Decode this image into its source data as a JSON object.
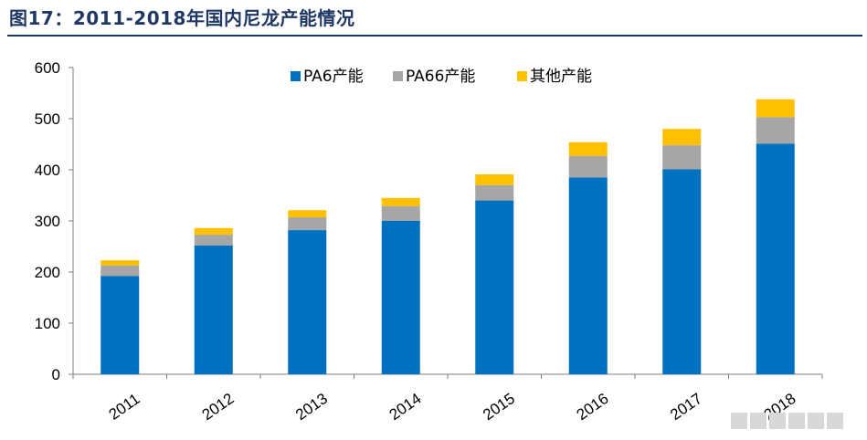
{
  "page": {
    "title": "图17：2011-2018年国内尼龙产能情况"
  },
  "chart_data": {
    "type": "bar",
    "stacked": true,
    "categories": [
      "2011",
      "2012",
      "2013",
      "2014",
      "2015",
      "2016",
      "2017",
      "2018"
    ],
    "series": [
      {
        "name": "PA6产能",
        "color": "#0070c0",
        "values": [
          192,
          252,
          282,
          300,
          340,
          385,
          401,
          451
        ]
      },
      {
        "name": "PA66产能",
        "color": "#a6a6a6",
        "values": [
          21,
          21,
          25,
          29,
          30,
          42,
          47,
          52
        ]
      },
      {
        "name": "其他产能",
        "color": "#ffc000",
        "values": [
          10,
          13,
          14,
          16,
          21,
          27,
          32,
          35
        ]
      }
    ],
    "ylim": [
      0,
      600
    ],
    "yticks": [
      0,
      100,
      200,
      300,
      400,
      500,
      600
    ],
    "legend": "top",
    "grid": false
  }
}
